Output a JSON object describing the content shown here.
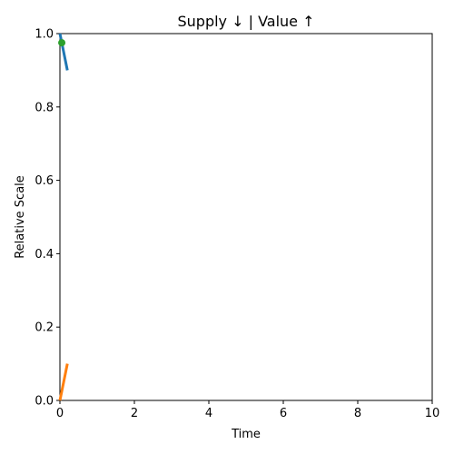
{
  "chart_data": {
    "type": "line",
    "title": "Supply ↓  |  Value ↑",
    "xlabel": "Time",
    "ylabel": "Relative Scale",
    "xlim": [
      0,
      10
    ],
    "ylim": [
      0,
      1
    ],
    "xticks": [
      "0",
      "2",
      "4",
      "6",
      "8",
      "10"
    ],
    "yticks": [
      "0.0",
      "0.2",
      "0.4",
      "0.6",
      "0.8",
      "1.0"
    ],
    "grid": false,
    "series": [
      {
        "color": "#1f77b4",
        "x": [
          0,
          0.2
        ],
        "y": [
          1.0,
          0.9
        ]
      },
      {
        "color": "#ff7f0e",
        "x": [
          0,
          0.2
        ],
        "y": [
          0.0,
          0.1
        ]
      }
    ],
    "points": [
      {
        "color": "#2ca02c",
        "x": [
          0.05
        ],
        "y": [
          0.975
        ]
      }
    ]
  }
}
